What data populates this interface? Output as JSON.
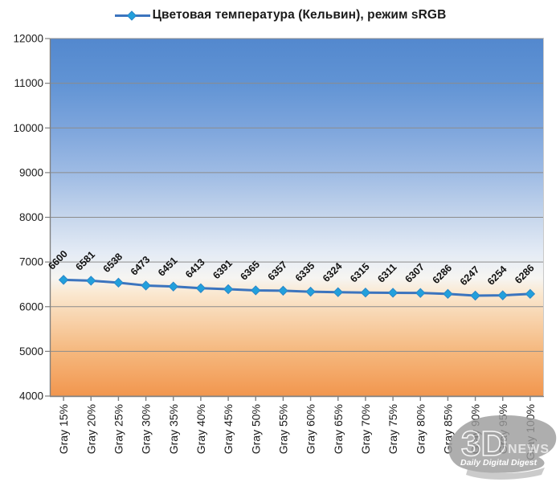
{
  "chart_data": {
    "type": "line",
    "title": "Цветовая температура (Кельвин), режим sRGB",
    "legend_position": "top-center",
    "categories": [
      "Gray 15%",
      "Gray 20%",
      "Gray 25%",
      "Gray 30%",
      "Gray 35%",
      "Gray 40%",
      "Gray 45%",
      "Gray 50%",
      "Gray 55%",
      "Gray 60%",
      "Gray 65%",
      "Gray 70%",
      "Gray 75%",
      "Gray 80%",
      "Gray 85%",
      "Gray 90%",
      "Gray 95%",
      "Gray 100%"
    ],
    "values": [
      6600,
      6581,
      6538,
      6473,
      6451,
      6413,
      6391,
      6365,
      6357,
      6335,
      6324,
      6315,
      6311,
      6307,
      6286,
      6247,
      6254,
      6286
    ],
    "ylim": [
      4000,
      12000
    ],
    "y_ticks": [
      12000,
      11000,
      10000,
      9000,
      8000,
      7000,
      6000,
      5000,
      4000
    ],
    "grid": true,
    "data_labels": true,
    "xlabel": "",
    "ylabel": "",
    "colors": {
      "line": "#3C74BE",
      "marker": "#22A0DC",
      "marker_edge": "#2B86C8",
      "grid": "#8C8C8C",
      "axis": "#808080",
      "text": "#1A1A1A",
      "data_label": "#111111",
      "plot_border_right": "#C9C9C9"
    },
    "plot_gradient": [
      {
        "offset": "0%",
        "color": "#5388CE"
      },
      {
        "offset": "12%",
        "color": "#6093D4"
      },
      {
        "offset": "25%",
        "color": "#7DA5DC"
      },
      {
        "offset": "37.5%",
        "color": "#9EBBE4"
      },
      {
        "offset": "50%",
        "color": "#C6D6EC"
      },
      {
        "offset": "60%",
        "color": "#E4EBF5"
      },
      {
        "offset": "67%",
        "color": "#F6F5F2"
      },
      {
        "offset": "71%",
        "color": "#FAE9D2"
      },
      {
        "offset": "75%",
        "color": "#F9DDBD"
      },
      {
        "offset": "87.5%",
        "color": "#F5B87E"
      },
      {
        "offset": "100%",
        "color": "#F2964E"
      }
    ]
  },
  "watermark": {
    "big": "3D",
    "news": "NEWS",
    "tagline": "Daily Digital Digest",
    "color": "#9D9D9D"
  }
}
